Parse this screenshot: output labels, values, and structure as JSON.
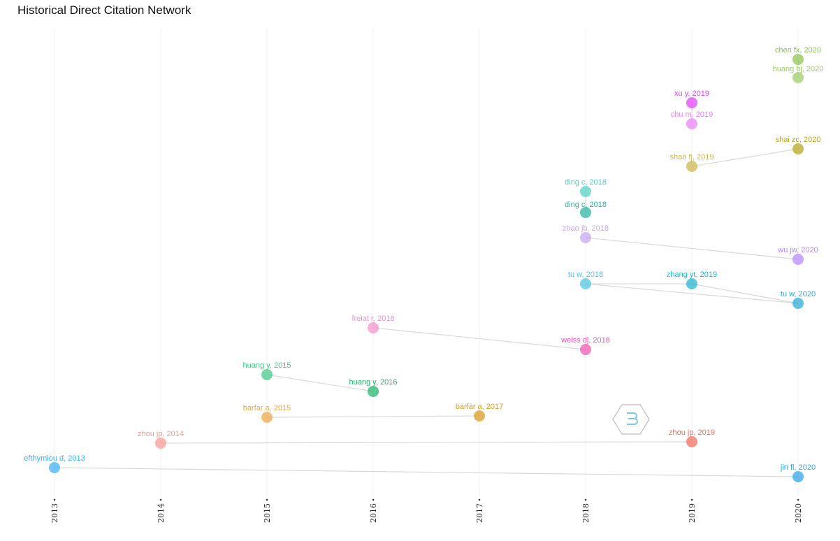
{
  "chart_data": {
    "type": "scatter",
    "title": "Historical Direct Citation Network",
    "xlabel": "",
    "ylabel": "",
    "xlim": [
      2013,
      2020
    ],
    "x_ticks": [
      "2013",
      "2014",
      "2015",
      "2016",
      "2017",
      "2018",
      "2019",
      "2020"
    ],
    "grid": "vertical",
    "nodes": [
      {
        "id": "n1",
        "label": "chen fx, 2020",
        "year": 2020,
        "color": "#8bc34a"
      },
      {
        "id": "n2",
        "label": "huang hj, 2020",
        "year": 2020,
        "color": "#9ccc65"
      },
      {
        "id": "n3",
        "label": "xu y, 2019",
        "year": 2019,
        "color": "#e040fb"
      },
      {
        "id": "n4",
        "label": "chu m, 2019",
        "year": 2019,
        "color": "#ea80fc"
      },
      {
        "id": "n5",
        "label": "shai zc, 2020",
        "year": 2020,
        "color": "#b7a51b"
      },
      {
        "id": "n6",
        "label": "shao fj, 2019",
        "year": 2019,
        "color": "#c9b84a"
      },
      {
        "id": "n7",
        "label": "ding c, 2018",
        "year": 2018,
        "color": "#4dd0c0"
      },
      {
        "id": "n8",
        "label": "ding c, 2018",
        "year": 2018,
        "color": "#26b3a0"
      },
      {
        "id": "n9",
        "label": "zhao jb, 2018",
        "year": 2018,
        "color": "#c5a3f5"
      },
      {
        "id": "n10",
        "label": "wu jw, 2020",
        "year": 2020,
        "color": "#b388ff"
      },
      {
        "id": "n11",
        "label": "tu w, 2018",
        "year": 2018,
        "color": "#4fc3e0"
      },
      {
        "id": "n12",
        "label": "zhang yt, 2019",
        "year": 2019,
        "color": "#1eb4cc"
      },
      {
        "id": "n13",
        "label": "tu w, 2020",
        "year": 2020,
        "color": "#26a8d6"
      },
      {
        "id": "n14",
        "label": "frelat r, 2016",
        "year": 2016,
        "color": "#f48fce"
      },
      {
        "id": "n15",
        "label": "weiss dj, 2018",
        "year": 2018,
        "color": "#ee55b0"
      },
      {
        "id": "n16",
        "label": "huang y, 2015",
        "year": 2015,
        "color": "#3ec986"
      },
      {
        "id": "n17",
        "label": "huang y, 2016",
        "year": 2016,
        "color": "#1db36b"
      },
      {
        "id": "n18",
        "label": "barfar a, 2015",
        "year": 2015,
        "color": "#e8a84a"
      },
      {
        "id": "n19",
        "label": "barfar a, 2017",
        "year": 2017,
        "color": "#d99a1c"
      },
      {
        "id": "n20",
        "label": "zhou jp, 2014",
        "year": 2014,
        "color": "#f59a90"
      },
      {
        "id": "n21",
        "label": "zhou jp, 2019",
        "year": 2019,
        "color": "#f26b5e"
      },
      {
        "id": "n22",
        "label": "efthymiou d, 2013",
        "year": 2013,
        "color": "#3bb0f0"
      },
      {
        "id": "n23",
        "label": "jin fl, 2020",
        "year": 2020,
        "color": "#2aa3e8"
      }
    ],
    "edges": [
      [
        "n6",
        "n5"
      ],
      [
        "n9",
        "n10"
      ],
      [
        "n11",
        "n12"
      ],
      [
        "n11",
        "n13"
      ],
      [
        "n12",
        "n13"
      ],
      [
        "n14",
        "n15"
      ],
      [
        "n16",
        "n17"
      ],
      [
        "n18",
        "n19"
      ],
      [
        "n20",
        "n21"
      ],
      [
        "n22",
        "n23"
      ],
      [
        "n7",
        "n8"
      ],
      [
        "n3",
        "n4"
      ],
      [
        "n1",
        "n2"
      ]
    ]
  }
}
